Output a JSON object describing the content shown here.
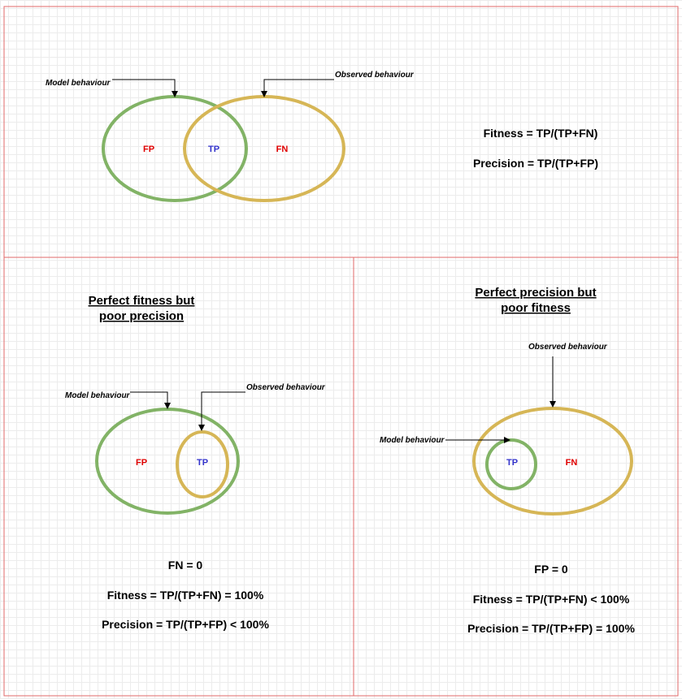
{
  "colors": {
    "panel_border": "#e06a6a",
    "model_ellipse": "#82b366",
    "observed_ellipse": "#d6b656",
    "fp_text": "#e00000",
    "tp_text": "#3333cc",
    "fn_text": "#e00000"
  },
  "top": {
    "model_label": "Model behaviour",
    "observed_label": "Observed behaviour",
    "fp": "FP",
    "tp": "TP",
    "fn": "FN",
    "fitness_formula": "Fitness = TP/(TP+FN)",
    "precision_formula": "Precision = TP/(TP+FP)"
  },
  "bottom_left": {
    "heading_line1": "Perfect fitness but",
    "heading_line2": "poor precision",
    "model_label": "Model behaviour",
    "observed_label": "Observed behaviour",
    "fp": "FP",
    "tp": "TP",
    "fn_zero": "FN = 0",
    "fitness_formula": "Fitness = TP/(TP+FN) =  100%",
    "precision_formula": "Precision = TP/(TP+FP) < 100%"
  },
  "bottom_right": {
    "heading_line1": "Perfect precision but",
    "heading_line2": "poor fitness",
    "observed_label": "Observed behaviour",
    "model_label": "Model behaviour",
    "tp": "TP",
    "fn": "FN",
    "fp_zero": "FP = 0",
    "fitness_formula": "Fitness = TP/(TP+FN) <  100%",
    "precision_formula": "Precision = TP/(TP+FP) = 100%"
  }
}
